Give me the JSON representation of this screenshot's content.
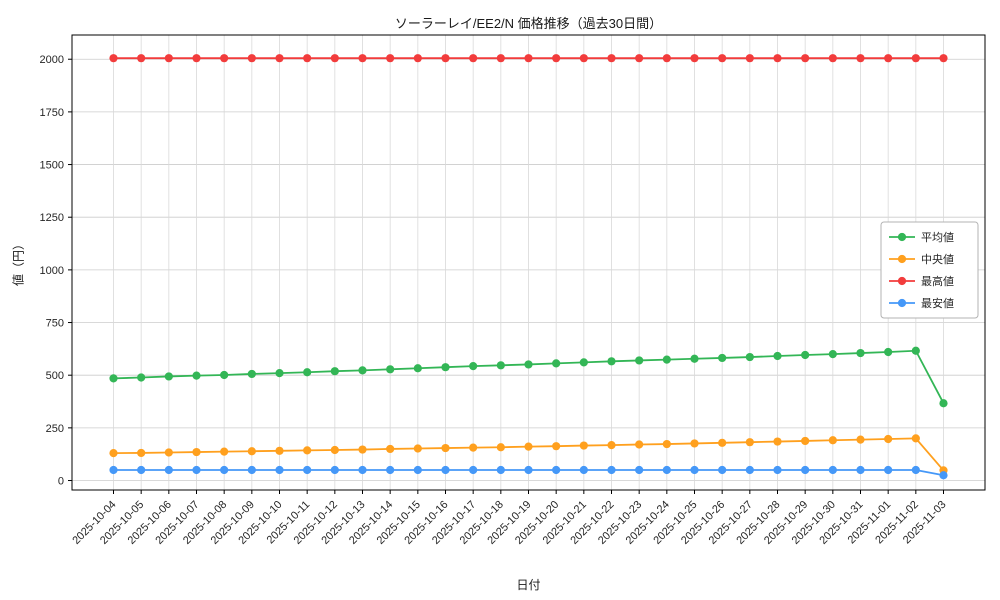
{
  "chart_data": {
    "type": "line",
    "title": "ソーラーレイ/EE2/N 価格推移（過去30日間）",
    "xlabel": "日付",
    "ylabel": "値（円）",
    "grid": true,
    "legend_position": "right-middle",
    "ylim": [
      -45,
      2115
    ],
    "yticks": [
      0,
      250,
      500,
      750,
      1000,
      1250,
      1500,
      1750,
      2000
    ],
    "categories": [
      "2025-10-04",
      "2025-10-05",
      "2025-10-06",
      "2025-10-07",
      "2025-10-08",
      "2025-10-09",
      "2025-10-10",
      "2025-10-11",
      "2025-10-12",
      "2025-10-13",
      "2025-10-14",
      "2025-10-15",
      "2025-10-16",
      "2025-10-17",
      "2025-10-18",
      "2025-10-19",
      "2025-10-20",
      "2025-10-21",
      "2025-10-22",
      "2025-10-23",
      "2025-10-24",
      "2025-10-25",
      "2025-10-26",
      "2025-10-27",
      "2025-10-28",
      "2025-10-29",
      "2025-10-30",
      "2025-10-31",
      "2025-11-01",
      "2025-11-02",
      "2025-11-03"
    ],
    "series": [
      {
        "name": "平均値",
        "color": "#33b656",
        "values": [
          485,
          489,
          494,
          498,
          501,
          506,
          510,
          514,
          519,
          523,
          528,
          533,
          538,
          543,
          547,
          551,
          556,
          561,
          566,
          570,
          574,
          578,
          582,
          586,
          591,
          596,
          600,
          605,
          610,
          616,
          367
        ]
      },
      {
        "name": "中央値",
        "color": "#ffa01e",
        "values": [
          130,
          131,
          133,
          135,
          137,
          139,
          141,
          143,
          145,
          147,
          150,
          152,
          154,
          156,
          158,
          161,
          163,
          166,
          168,
          171,
          173,
          176,
          179,
          182,
          185,
          188,
          191,
          194,
          197,
          200,
          48
        ]
      },
      {
        "name": "最高値",
        "color": "#f23c3c",
        "values": [
          2005,
          2005,
          2005,
          2005,
          2005,
          2005,
          2005,
          2005,
          2005,
          2005,
          2005,
          2005,
          2005,
          2005,
          2005,
          2005,
          2005,
          2005,
          2005,
          2005,
          2005,
          2005,
          2005,
          2005,
          2005,
          2005,
          2005,
          2005,
          2005,
          2005,
          2005
        ]
      },
      {
        "name": "最安値",
        "color": "#4598f8",
        "values": [
          50,
          50,
          50,
          50,
          50,
          50,
          50,
          50,
          50,
          50,
          50,
          50,
          50,
          50,
          50,
          50,
          50,
          50,
          50,
          50,
          50,
          50,
          50,
          50,
          50,
          50,
          50,
          50,
          50,
          50,
          25
        ]
      }
    ]
  }
}
